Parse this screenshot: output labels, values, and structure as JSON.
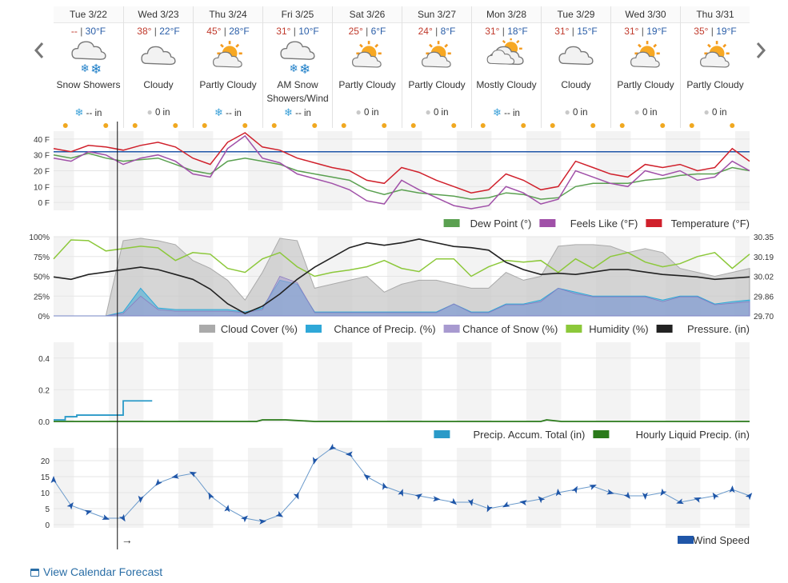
{
  "nav": {
    "prev_label": "‹",
    "next_label": "›"
  },
  "days": [
    {
      "label": "Tue 3/22",
      "hi": "--",
      "lo": "30°F",
      "icon": "snow-cloud-icon",
      "cond": "Snow Showers",
      "ptype": "snow",
      "precip": "-- in"
    },
    {
      "label": "Wed 3/23",
      "hi": "38°",
      "lo": "22°F",
      "icon": "cloud-icon",
      "cond": "Cloudy",
      "ptype": "rain",
      "precip": "0 in"
    },
    {
      "label": "Thu 3/24",
      "hi": "45°",
      "lo": "28°F",
      "icon": "partly-cloudy-icon",
      "cond": "Partly Cloudy",
      "ptype": "snow",
      "precip": "-- in"
    },
    {
      "label": "Fri 3/25",
      "hi": "31°",
      "lo": "10°F",
      "icon": "snow-cloud-icon",
      "cond": "AM Snow Showers/Wind",
      "ptype": "snow",
      "precip": "-- in"
    },
    {
      "label": "Sat 3/26",
      "hi": "25°",
      "lo": "6°F",
      "icon": "partly-cloudy-icon",
      "cond": "Partly Cloudy",
      "ptype": "rain",
      "precip": "0 in"
    },
    {
      "label": "Sun 3/27",
      "hi": "24°",
      "lo": "8°F",
      "icon": "partly-cloudy-icon",
      "cond": "Partly Cloudy",
      "ptype": "rain",
      "precip": "0 in"
    },
    {
      "label": "Mon 3/28",
      "hi": "31°",
      "lo": "18°F",
      "icon": "mostly-cloudy-icon",
      "cond": "Mostly Cloudy",
      "ptype": "snow",
      "precip": "-- in"
    },
    {
      "label": "Tue 3/29",
      "hi": "31°",
      "lo": "15°F",
      "icon": "cloud-icon",
      "cond": "Cloudy",
      "ptype": "rain",
      "precip": "0 in"
    },
    {
      "label": "Wed 3/30",
      "hi": "31°",
      "lo": "19°F",
      "icon": "partly-cloudy-icon",
      "cond": "Partly Cloudy",
      "ptype": "rain",
      "precip": "0 in"
    },
    {
      "label": "Thu 3/31",
      "hi": "35°",
      "lo": "19°F",
      "icon": "partly-cloudy-icon",
      "cond": "Partly Cloudy",
      "ptype": "rain",
      "precip": "0 in"
    }
  ],
  "links": {
    "calendar": "View Calendar Forecast"
  },
  "cursor_arrow": "→",
  "colors": {
    "temperature": "#d0202b",
    "feels_like": "#a050a8",
    "dew_point": "#5aa050",
    "freezing": "#1f56a8",
    "cloud": "#c8c8c8",
    "precip_chance": "#2fa8d8",
    "snow_chance": "#a89ad0",
    "humidity": "#8cc83a",
    "pressure": "#222222",
    "accum": "#2a9ac8",
    "hourly_liquid": "#2a7a1a",
    "wind": "#1f56a8"
  },
  "chart_data": [
    {
      "type": "line",
      "id": "temperature",
      "x_unit": "hours from start of Tue 3/22",
      "x_range": [
        0,
        240
      ],
      "yticks": [
        "40 F",
        "30 F",
        "20 F",
        "10 F",
        "0 F"
      ],
      "ylim": [
        -5,
        45
      ],
      "reference_line": 32,
      "legend": [
        "Dew Point (°)",
        "Feels Like (°F)",
        "Temperature (°F)"
      ],
      "series": [
        {
          "name": "Temperature (°F)",
          "x": [
            0,
            6,
            12,
            18,
            24,
            30,
            36,
            42,
            48,
            54,
            60,
            66,
            72,
            78,
            84,
            90,
            96,
            102,
            108,
            114,
            120,
            126,
            132,
            138,
            144,
            150,
            156,
            162,
            168,
            174,
            180,
            186,
            192,
            198,
            204,
            210,
            216,
            222,
            228,
            234,
            240
          ],
          "values": [
            34,
            32,
            36,
            35,
            33,
            36,
            38,
            35,
            28,
            24,
            38,
            44,
            35,
            33,
            28,
            25,
            22,
            20,
            14,
            12,
            22,
            19,
            14,
            10,
            6,
            8,
            18,
            14,
            8,
            10,
            26,
            22,
            18,
            16,
            24,
            22,
            24,
            20,
            22,
            34,
            26
          ]
        },
        {
          "name": "Feels Like (°F)",
          "x": [
            0,
            6,
            12,
            18,
            24,
            30,
            36,
            42,
            48,
            54,
            60,
            66,
            72,
            78,
            84,
            90,
            96,
            102,
            108,
            114,
            120,
            126,
            132,
            138,
            144,
            150,
            156,
            162,
            168,
            174,
            180,
            186,
            192,
            198,
            204,
            210,
            216,
            222,
            228,
            234,
            240
          ],
          "values": [
            28,
            26,
            32,
            30,
            24,
            28,
            30,
            26,
            18,
            16,
            34,
            42,
            28,
            25,
            18,
            15,
            12,
            8,
            1,
            -1,
            14,
            8,
            3,
            -2,
            -4,
            -2,
            10,
            6,
            -1,
            2,
            20,
            16,
            12,
            10,
            20,
            17,
            20,
            14,
            16,
            26,
            20
          ]
        },
        {
          "name": "Dew Point (°)",
          "x": [
            0,
            6,
            12,
            18,
            24,
            30,
            36,
            42,
            48,
            54,
            60,
            66,
            72,
            78,
            84,
            90,
            96,
            102,
            108,
            114,
            120,
            126,
            132,
            138,
            144,
            150,
            156,
            162,
            168,
            174,
            180,
            186,
            192,
            198,
            204,
            210,
            216,
            222,
            228,
            234,
            240
          ],
          "values": [
            30,
            28,
            31,
            28,
            26,
            27,
            28,
            24,
            20,
            18,
            26,
            28,
            26,
            24,
            20,
            18,
            16,
            14,
            8,
            5,
            8,
            6,
            5,
            4,
            2,
            3,
            6,
            5,
            2,
            3,
            10,
            12,
            12,
            12,
            14,
            15,
            17,
            18,
            18,
            22,
            20
          ]
        }
      ]
    },
    {
      "type": "area",
      "id": "sky",
      "x_unit": "hours from start of Tue 3/22",
      "x_range": [
        0,
        240
      ],
      "yticks_left": [
        "100%",
        "75%",
        "50%",
        "25%",
        "0%"
      ],
      "yticks_right": [
        "30.35",
        "30.19",
        "30.02",
        "29.86",
        "29.70"
      ],
      "legend": [
        "Cloud Cover (%)",
        "Chance of Precip. (%)",
        "Chance of Snow (%)",
        "Humidity (%)",
        "Pressure. (in)"
      ],
      "series": [
        {
          "name": "Cloud Cover (%)",
          "x": [
            0,
            6,
            12,
            18,
            24,
            30,
            36,
            42,
            48,
            54,
            60,
            66,
            72,
            78,
            84,
            90,
            96,
            102,
            108,
            114,
            120,
            126,
            132,
            138,
            144,
            150,
            156,
            162,
            168,
            174,
            180,
            186,
            192,
            198,
            204,
            210,
            216,
            222,
            228,
            234,
            240
          ],
          "values": [
            0,
            0,
            0,
            0,
            95,
            98,
            95,
            90,
            70,
            60,
            45,
            20,
            55,
            98,
            95,
            35,
            40,
            45,
            50,
            30,
            40,
            45,
            45,
            40,
            35,
            35,
            55,
            45,
            50,
            88,
            90,
            90,
            88,
            80,
            85,
            80,
            60,
            55,
            50,
            55,
            60
          ]
        },
        {
          "name": "Chance of Precip. (%)",
          "x": [
            0,
            6,
            12,
            18,
            24,
            30,
            36,
            42,
            48,
            54,
            60,
            66,
            72,
            78,
            84,
            90,
            96,
            102,
            108,
            114,
            120,
            126,
            132,
            138,
            144,
            150,
            156,
            162,
            168,
            174,
            180,
            186,
            192,
            198,
            204,
            210,
            216,
            222,
            228,
            234,
            240
          ],
          "values": [
            0,
            0,
            0,
            0,
            5,
            35,
            10,
            8,
            8,
            8,
            8,
            5,
            10,
            45,
            40,
            5,
            5,
            5,
            5,
            5,
            5,
            5,
            5,
            15,
            5,
            5,
            15,
            15,
            20,
            35,
            30,
            25,
            25,
            25,
            25,
            20,
            25,
            25,
            15,
            18,
            20
          ]
        },
        {
          "name": "Chance of Snow (%)",
          "x": [
            0,
            6,
            12,
            18,
            24,
            30,
            36,
            42,
            48,
            54,
            60,
            66,
            72,
            78,
            84,
            90,
            96,
            102,
            108,
            114,
            120,
            126,
            132,
            138,
            144,
            150,
            156,
            162,
            168,
            174,
            180,
            186,
            192,
            198,
            204,
            210,
            216,
            222,
            228,
            234,
            240
          ],
          "values": [
            0,
            0,
            0,
            0,
            3,
            25,
            8,
            6,
            6,
            6,
            6,
            4,
            8,
            50,
            42,
            4,
            4,
            4,
            4,
            4,
            4,
            4,
            4,
            15,
            4,
            4,
            14,
            14,
            18,
            35,
            28,
            24,
            24,
            24,
            24,
            18,
            24,
            24,
            14,
            16,
            18
          ]
        },
        {
          "name": "Humidity (%)",
          "x": [
            0,
            6,
            12,
            18,
            24,
            30,
            36,
            42,
            48,
            54,
            60,
            66,
            72,
            78,
            84,
            90,
            96,
            102,
            108,
            114,
            120,
            126,
            132,
            138,
            144,
            150,
            156,
            162,
            168,
            174,
            180,
            186,
            192,
            198,
            204,
            210,
            216,
            222,
            228,
            234,
            240
          ],
          "values": [
            72,
            96,
            95,
            82,
            85,
            88,
            86,
            70,
            80,
            78,
            60,
            55,
            72,
            80,
            62,
            50,
            55,
            58,
            62,
            70,
            60,
            56,
            72,
            72,
            50,
            62,
            70,
            68,
            70,
            55,
            72,
            60,
            75,
            80,
            68,
            62,
            66,
            75,
            80,
            60,
            78
          ]
        },
        {
          "name": "Pressure. (in)",
          "x": [
            0,
            6,
            12,
            18,
            24,
            30,
            36,
            42,
            48,
            54,
            60,
            66,
            72,
            78,
            84,
            90,
            96,
            102,
            108,
            114,
            120,
            126,
            132,
            138,
            144,
            150,
            156,
            162,
            168,
            174,
            180,
            186,
            192,
            198,
            204,
            210,
            216,
            222,
            228,
            234,
            240
          ],
          "values": [
            30.02,
            30.0,
            30.04,
            30.06,
            30.08,
            30.1,
            30.08,
            30.04,
            30.0,
            29.92,
            29.8,
            29.72,
            29.78,
            29.88,
            30.0,
            30.1,
            30.18,
            30.26,
            30.3,
            30.28,
            30.3,
            30.33,
            30.3,
            30.27,
            30.26,
            30.24,
            30.14,
            30.08,
            30.04,
            30.05,
            30.04,
            30.06,
            30.08,
            30.08,
            30.06,
            30.04,
            30.03,
            30.02,
            30.0,
            30.01,
            30.02
          ]
        }
      ]
    },
    {
      "type": "line",
      "id": "precip",
      "x_unit": "hours from start of Tue 3/22",
      "x_range": [
        0,
        240
      ],
      "yticks": [
        "0.4",
        "0.2",
        "0.0"
      ],
      "ylim": [
        0,
        0.5
      ],
      "legend": [
        "Precip. Accum. Total (in)",
        "Hourly Liquid Precip. (in)"
      ],
      "series": [
        {
          "name": "Precip. Accum. Total (in)",
          "x": [
            0,
            4,
            8,
            12,
            16,
            22,
            24,
            30,
            33,
            34
          ],
          "values": [
            0.01,
            0.03,
            0.04,
            0.04,
            0.04,
            0.04,
            0.13,
            0.13,
            0.13,
            0.13
          ]
        },
        {
          "name": "Hourly Liquid Precip. (in)",
          "x": [
            0,
            30,
            60,
            70,
            72,
            80,
            90,
            120,
            168,
            170,
            175,
            240
          ],
          "values": [
            0,
            0,
            0,
            0,
            0.01,
            0.01,
            0,
            0,
            0,
            0.01,
            0,
            0
          ]
        }
      ]
    },
    {
      "type": "line",
      "id": "wind",
      "x_unit": "hours from start of Tue 3/22",
      "x_range": [
        0,
        240
      ],
      "yticks": [
        "20",
        "15",
        "10",
        "5",
        "0"
      ],
      "ylim": [
        -1,
        24
      ],
      "legend": [
        "Wind Speed"
      ],
      "series": [
        {
          "name": "Wind Speed",
          "x": [
            0,
            6,
            12,
            18,
            24,
            30,
            36,
            42,
            48,
            54,
            60,
            66,
            72,
            78,
            84,
            90,
            96,
            102,
            108,
            114,
            120,
            126,
            132,
            138,
            144,
            150,
            156,
            162,
            168,
            174,
            180,
            186,
            192,
            198,
            204,
            210,
            216,
            222,
            228,
            234,
            240
          ],
          "values": [
            14,
            6,
            4,
            2,
            2,
            8,
            13,
            15,
            16,
            9,
            5,
            2,
            1,
            3,
            9,
            20,
            24,
            22,
            15,
            12,
            10,
            9,
            8,
            7,
            7,
            5,
            6,
            7,
            8,
            10,
            11,
            12,
            10,
            9,
            9,
            10,
            7,
            8,
            9,
            11,
            9
          ]
        }
      ]
    }
  ]
}
